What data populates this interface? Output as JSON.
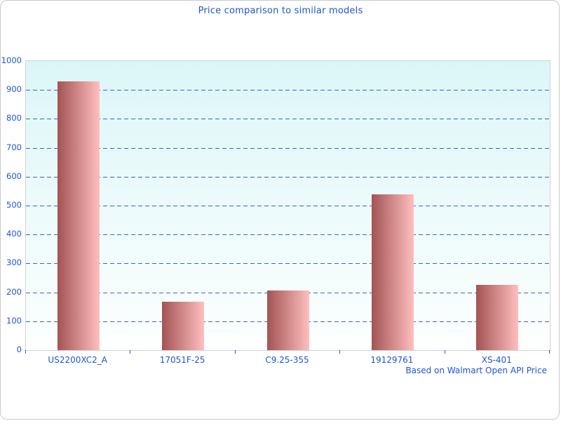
{
  "window": {
    "background": "#ffffff",
    "border_color": "#c9c9c9"
  },
  "chart_data": {
    "type": "bar",
    "title": "Price comparison to similar models",
    "footer": "Based on Walmart Open API Price",
    "categories": [
      "US2200XC2_A",
      "17051F-25",
      "C9.25-355",
      "19129761",
      "XS-401"
    ],
    "values": [
      930,
      168,
      206,
      540,
      226
    ],
    "xlabel": "",
    "ylabel": "",
    "ylim": [
      0,
      1000
    ],
    "ytick_step": 100,
    "ytick_labels": [
      "0",
      "100",
      "200",
      "300",
      "400",
      "500",
      "600",
      "700",
      "800",
      "900",
      "1000"
    ],
    "grid": "horizontal-dashed",
    "legend": "none",
    "colors": {
      "title_text": "#1e55d6",
      "axis_text": "#1e55d6",
      "gridline": "#3a64c8",
      "axis_tick": "#2255cc",
      "bar_gradient_left": "#a35353",
      "bar_gradient_right": "#ffbfbf",
      "plot_bg_top": "#dcf6f8",
      "plot_bg_bottom": "#fdfffe",
      "plot_border": "#d3d3d3"
    }
  }
}
